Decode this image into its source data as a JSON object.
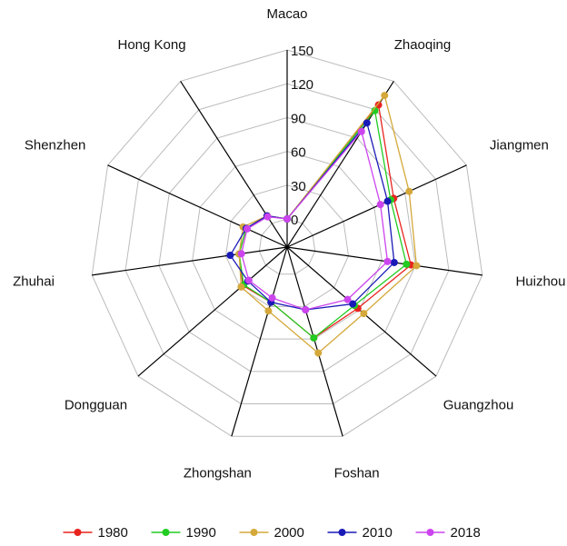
{
  "chart_data": {
    "type": "radar",
    "categories": [
      "Macao",
      "Zhaoqing",
      "Jiangmen",
      "Huizhou",
      "Guangzhou",
      "Foshan",
      "Zhongshan",
      "Dongguan",
      "Zhuhai",
      "Shenzhen",
      "Hong Kong"
    ],
    "rlim": [
      -25,
      150
    ],
    "rticks": [
      0,
      30,
      60,
      90,
      120,
      150
    ],
    "grid": true,
    "legend": "bottom",
    "series": [
      {
        "name": "1980",
        "color": "#e8231e",
        "values": [
          0,
          125,
          79,
          86,
          58,
          59,
          26,
          27,
          18,
          15,
          8
        ]
      },
      {
        "name": "1990",
        "color": "#22cc22",
        "values": [
          0,
          119,
          76,
          82,
          54,
          59,
          26,
          26,
          18,
          15,
          8
        ]
      },
      {
        "name": "2000",
        "color": "#d4a83a",
        "values": [
          0,
          135,
          94,
          91,
          65,
          73,
          34,
          29,
          18,
          18,
          8
        ]
      },
      {
        "name": "2010",
        "color": "#1a1ab8",
        "values": [
          0,
          106,
          73,
          71,
          52,
          33,
          26,
          21,
          26,
          15,
          8
        ]
      },
      {
        "name": "2018",
        "color": "#cc44ee",
        "values": [
          0,
          97,
          66,
          65,
          46,
          33,
          22,
          20,
          16,
          14,
          7
        ]
      }
    ]
  }
}
